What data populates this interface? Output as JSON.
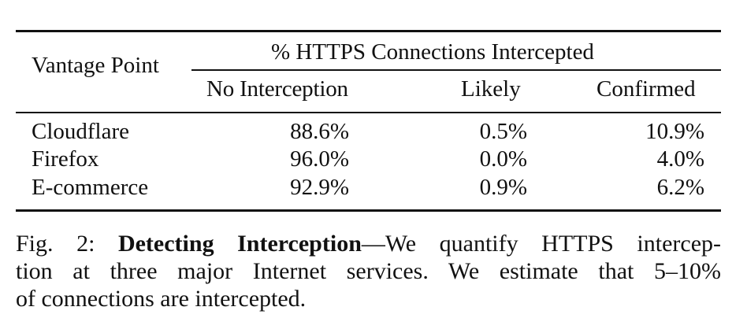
{
  "table": {
    "headers": {
      "vantage_point": "Vantage Point",
      "group": "% HTTPS Connections Intercepted",
      "columns": [
        "No Interception",
        "Likely",
        "Confirmed"
      ]
    },
    "rows": [
      {
        "label": "Cloudflare",
        "values": [
          "88.6%",
          "0.5%",
          "10.9%"
        ]
      },
      {
        "label": "Firefox",
        "values": [
          "96.0%",
          "0.0%",
          "4.0%"
        ]
      },
      {
        "label": "E-commerce",
        "values": [
          "92.9%",
          "0.9%",
          "6.2%"
        ]
      }
    ]
  },
  "caption": {
    "prefix": "Fig. 2: ",
    "bold_title": "Detecting Interception",
    "dash": "—",
    "line1_rest": "We quantify HTTPS intercep-",
    "line2": "tion at three major Internet services. We estimate that 5–10%",
    "line3": "of connections are intercepted."
  }
}
